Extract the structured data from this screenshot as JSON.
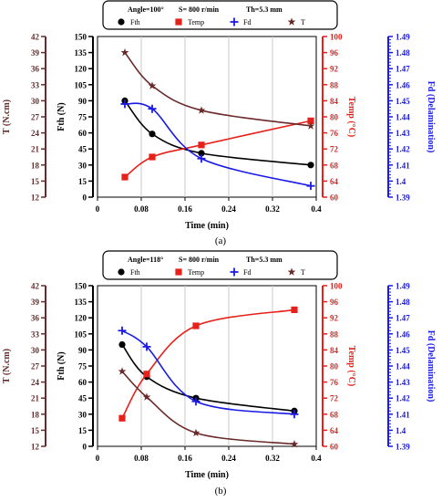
{
  "chart_data": [
    {
      "type": "scatter",
      "panel_label": "(a)",
      "legend": {
        "conditions": [
          "Angle=100°",
          "S= 800 r/min",
          "Th=5.3 mm"
        ],
        "entries": [
          "Fth",
          "Temp",
          "Fd",
          "T"
        ],
        "placement": "top"
      },
      "xlabel": "Time (min)",
      "xlim": [
        0,
        0.4
      ],
      "xticks": [
        "0",
        "0.08",
        "0.16",
        "0.24",
        "0.32",
        "0.4"
      ],
      "grid": true,
      "axes": {
        "Fth": {
          "label": "Fth (N)",
          "range": [
            0,
            150
          ],
          "ticks": [
            "0",
            "15",
            "30",
            "45",
            "60",
            "75",
            "90",
            "105",
            "120",
            "135",
            "150"
          ],
          "color": "#000000"
        },
        "T": {
          "label": "T (N.cm)",
          "range": [
            12,
            42
          ],
          "ticks": [
            "12",
            "15",
            "18",
            "21",
            "24",
            "27",
            "30",
            "33",
            "36",
            "39",
            "42"
          ],
          "color": "#6b2a2a"
        },
        "Temp": {
          "label": "Temp (°C)",
          "range": [
            60,
            100
          ],
          "ticks": [
            "60",
            "64",
            "68",
            "72",
            "76",
            "80",
            "84",
            "88",
            "92",
            "96",
            "100"
          ],
          "color": "#e8201a"
        },
        "Fd": {
          "label": "Fd (Delamination)",
          "range": [
            1.39,
            1.49
          ],
          "ticks": [
            "1.39",
            "1.4",
            "1.41",
            "1.42",
            "1.43",
            "1.44",
            "1.45",
            "1.46",
            "1.47",
            "1.48",
            "1.49"
          ],
          "color": "#1a1ae6"
        }
      },
      "series": [
        {
          "name": "Fth",
          "axis": "Fth",
          "marker": "circle",
          "color": "#000000",
          "x": [
            0.05,
            0.1,
            0.19,
            0.39
          ],
          "y": [
            90,
            59,
            41,
            30
          ]
        },
        {
          "name": "Temp",
          "axis": "Temp",
          "marker": "square",
          "color": "#e8201a",
          "x": [
            0.05,
            0.1,
            0.19,
            0.39
          ],
          "y": [
            65,
            70,
            73,
            79
          ]
        },
        {
          "name": "Fd",
          "axis": "Fd",
          "marker": "plus",
          "color": "#1a1ae6",
          "x": [
            0.05,
            0.1,
            0.19,
            0.39
          ],
          "y": [
            1.448,
            1.445,
            1.414,
            1.397
          ]
        },
        {
          "name": "T",
          "axis": "T",
          "marker": "star",
          "color": "#6b2a2a",
          "x": [
            0.05,
            0.1,
            0.19,
            0.39
          ],
          "y": [
            39,
            32.8,
            28.2,
            25.3
          ]
        }
      ]
    },
    {
      "type": "scatter",
      "panel_label": "(b)",
      "legend": {
        "conditions": [
          "Angle=118°",
          "S= 800 r/min",
          "Th=5.3 mm"
        ],
        "entries": [
          "Fth",
          "Temp",
          "Fd",
          "T"
        ],
        "placement": "top"
      },
      "xlabel": "Time (min)",
      "xlim": [
        0,
        0.4
      ],
      "xticks": [
        "0",
        "0.08",
        "0.16",
        "0.24",
        "0.32",
        "0.4"
      ],
      "grid": true,
      "axes": {
        "Fth": {
          "label": "Fth (N)",
          "range": [
            0,
            150
          ],
          "ticks": [
            "0",
            "15",
            "30",
            "45",
            "60",
            "75",
            "90",
            "105",
            "120",
            "135",
            "150"
          ],
          "color": "#000000"
        },
        "T": {
          "label": "T (N.cm)",
          "range": [
            12,
            42
          ],
          "ticks": [
            "12",
            "15",
            "18",
            "21",
            "24",
            "27",
            "30",
            "33",
            "36",
            "39",
            "42"
          ],
          "color": "#6b2a2a"
        },
        "Temp": {
          "label": "Temp (°C)",
          "range": [
            60,
            100
          ],
          "ticks": [
            "60",
            "64",
            "68",
            "72",
            "76",
            "80",
            "84",
            "88",
            "92",
            "96",
            "100"
          ],
          "color": "#e8201a"
        },
        "Fd": {
          "label": "Fd (Delamination)",
          "range": [
            1.39,
            1.49
          ],
          "ticks": [
            "1.39",
            "1.4",
            "1.41",
            "1.42",
            "1.43",
            "1.44",
            "1.45",
            "1.46",
            "1.47",
            "1.48",
            "1.49"
          ],
          "color": "#1a1ae6"
        }
      },
      "series": [
        {
          "name": "Fth",
          "axis": "Fth",
          "marker": "circle",
          "color": "#000000",
          "x": [
            0.045,
            0.09,
            0.18,
            0.36
          ],
          "y": [
            95,
            65,
            45,
            33
          ]
        },
        {
          "name": "Temp",
          "axis": "Temp",
          "marker": "square",
          "color": "#e8201a",
          "x": [
            0.045,
            0.09,
            0.18,
            0.36
          ],
          "y": [
            67,
            78,
            90,
            94
          ]
        },
        {
          "name": "Fd",
          "axis": "Fd",
          "marker": "plus",
          "color": "#1a1ae6",
          "x": [
            0.045,
            0.09,
            0.18,
            0.36
          ],
          "y": [
            1.462,
            1.452,
            1.418,
            1.41
          ]
        },
        {
          "name": "T",
          "axis": "T",
          "marker": "star",
          "color": "#6b2a2a",
          "x": [
            0.045,
            0.09,
            0.18,
            0.36
          ],
          "y": [
            26,
            21.2,
            14.5,
            12.4
          ]
        }
      ]
    }
  ]
}
